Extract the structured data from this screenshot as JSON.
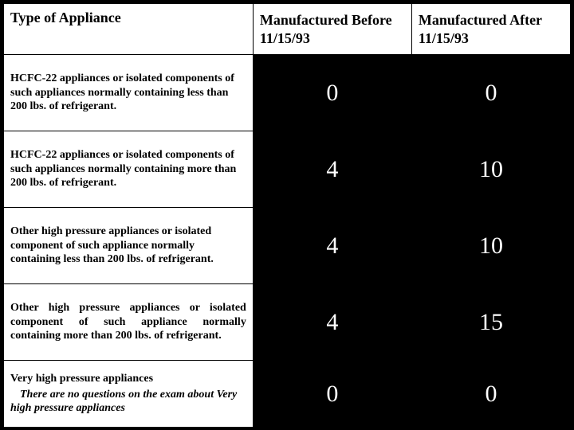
{
  "table": {
    "background_color": "#000000",
    "border_color": "#000000",
    "header_bg": "#ffffff",
    "body_bg": "#ffffff",
    "value_bg": "#000000",
    "value_color": "#ffffff",
    "header_fontsize": 18,
    "body_fontsize": 14,
    "value_fontsize": 30,
    "columns": {
      "appliance": "Type of Appliance",
      "before": "Manufactured Before 11/15/93",
      "after": "Manufactured After 11/15/93"
    },
    "rows": [
      {
        "appliance": "HCFC-22 appliances or isolated components of such appliances normally containing less than 200 lbs. of refrigerant.",
        "before": "0",
        "after": "0"
      },
      {
        "appliance": "HCFC-22 appliances or isolated components of such appliances normally containing more than 200 lbs. of refrigerant.",
        "before": "4",
        "after": "10"
      },
      {
        "appliance": "Other high pressure appliances or isolated component of such appliance normally containing less than 200 lbs. of refrigerant.",
        "before": "4",
        "after": "10"
      },
      {
        "appliance": "Other high pressure appliances or isolated component of such appliance normally containing more than 200 lbs. of refrigerant.",
        "before": "4",
        "after": "15",
        "justify": true
      },
      {
        "appliance": "Very high pressure appliances",
        "note": "There are no questions on the exam about Very high pressure appliances",
        "before": "0",
        "after": "0"
      }
    ]
  }
}
